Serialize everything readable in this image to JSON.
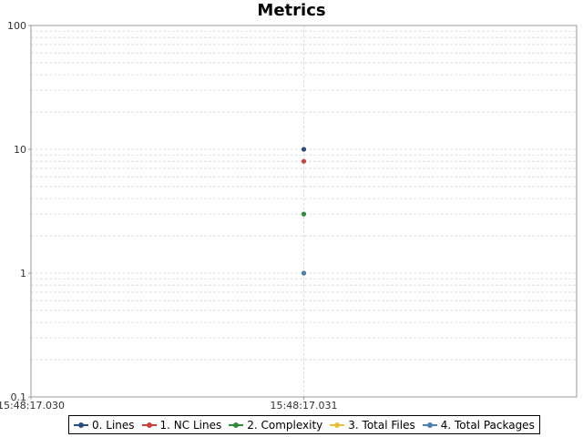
{
  "chart_data": {
    "type": "scatter",
    "title": "Metrics",
    "xlabel": "",
    "ylabel": "",
    "y_scale": "log",
    "ylim": [
      0.1,
      100
    ],
    "y_ticks": [
      {
        "value": 0.1,
        "label": "0.1"
      },
      {
        "value": 1,
        "label": "1"
      },
      {
        "value": 10,
        "label": "10"
      },
      {
        "value": 100,
        "label": "100"
      }
    ],
    "x_ticks": [
      "15:48:17.030",
      "15:48:17.031"
    ],
    "grid": true,
    "legend_position": "bottom",
    "series": [
      {
        "name": "0. Lines",
        "color": "#2a4d7f",
        "points": [
          {
            "x": "15:48:17.031",
            "y": 10
          }
        ]
      },
      {
        "name": "1. NC Lines",
        "color": "#cc4040",
        "points": [
          {
            "x": "15:48:17.031",
            "y": 8
          }
        ]
      },
      {
        "name": "2. Complexity",
        "color": "#2e8b3a",
        "points": [
          {
            "x": "15:48:17.031",
            "y": 3
          }
        ]
      },
      {
        "name": "3. Total Files",
        "color": "#e8c040",
        "points": [
          {
            "x": "15:48:17.031",
            "y": 1
          }
        ]
      },
      {
        "name": "4. Total Packages",
        "color": "#4a7fb0",
        "points": [
          {
            "x": "15:48:17.031",
            "y": 1
          }
        ]
      }
    ]
  }
}
